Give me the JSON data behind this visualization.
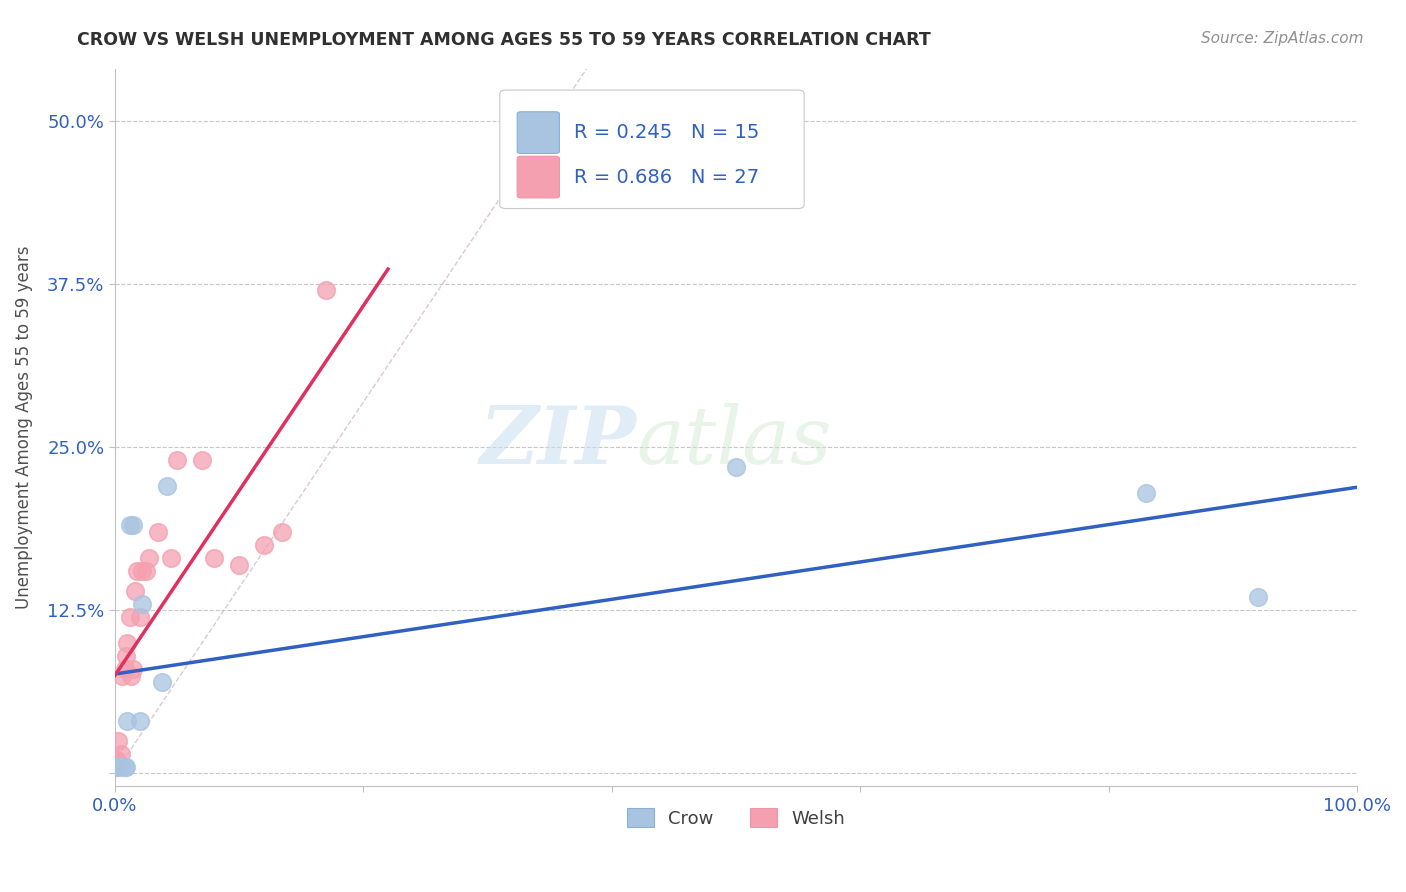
{
  "title": "CROW VS WELSH UNEMPLOYMENT AMONG AGES 55 TO 59 YEARS CORRELATION CHART",
  "source": "Source: ZipAtlas.com",
  "ylabel": "Unemployment Among Ages 55 to 59 years",
  "xlim": [
    0.0,
    1.0
  ],
  "ylim": [
    -0.01,
    0.54
  ],
  "xticks": [
    0.0,
    0.2,
    0.4,
    0.6,
    0.8,
    1.0
  ],
  "xticklabels": [
    "0.0%",
    "",
    "",
    "",
    "",
    "100.0%"
  ],
  "yticks": [
    0.0,
    0.125,
    0.25,
    0.375,
    0.5
  ],
  "yticklabels": [
    "",
    "12.5%",
    "25.0%",
    "37.5%",
    "50.0%"
  ],
  "crow_color": "#a8c4e0",
  "welsh_color": "#f4a0b0",
  "crow_line_color": "#3060c0",
  "welsh_line_color": "#e03060",
  "crow_label": "Crow",
  "welsh_label": "Welsh",
  "crow_R": "0.245",
  "crow_N": "15",
  "welsh_R": "0.686",
  "welsh_N": "27",
  "watermark_zip": "ZIP",
  "watermark_atlas": "atlas",
  "crow_x": [
    0.0,
    0.002,
    0.005,
    0.008,
    0.009,
    0.01,
    0.012,
    0.015,
    0.02,
    0.022,
    0.038,
    0.042,
    0.5,
    0.83,
    0.92
  ],
  "crow_y": [
    0.005,
    0.005,
    0.005,
    0.005,
    0.005,
    0.04,
    0.19,
    0.19,
    0.04,
    0.13,
    0.07,
    0.22,
    0.235,
    0.215,
    0.135
  ],
  "welsh_x": [
    0.0,
    0.0,
    0.002,
    0.003,
    0.005,
    0.006,
    0.008,
    0.009,
    0.01,
    0.012,
    0.013,
    0.015,
    0.016,
    0.018,
    0.02,
    0.022,
    0.025,
    0.028,
    0.035,
    0.045,
    0.05,
    0.07,
    0.08,
    0.1,
    0.12,
    0.135,
    0.17
  ],
  "welsh_y": [
    0.005,
    0.01,
    0.01,
    0.025,
    0.015,
    0.075,
    0.08,
    0.09,
    0.1,
    0.12,
    0.075,
    0.08,
    0.14,
    0.155,
    0.12,
    0.155,
    0.155,
    0.165,
    0.185,
    0.165,
    0.24,
    0.24,
    0.165,
    0.16,
    0.175,
    0.185,
    0.37
  ],
  "background_color": "#ffffff",
  "grid_color": "#c8c8c8"
}
